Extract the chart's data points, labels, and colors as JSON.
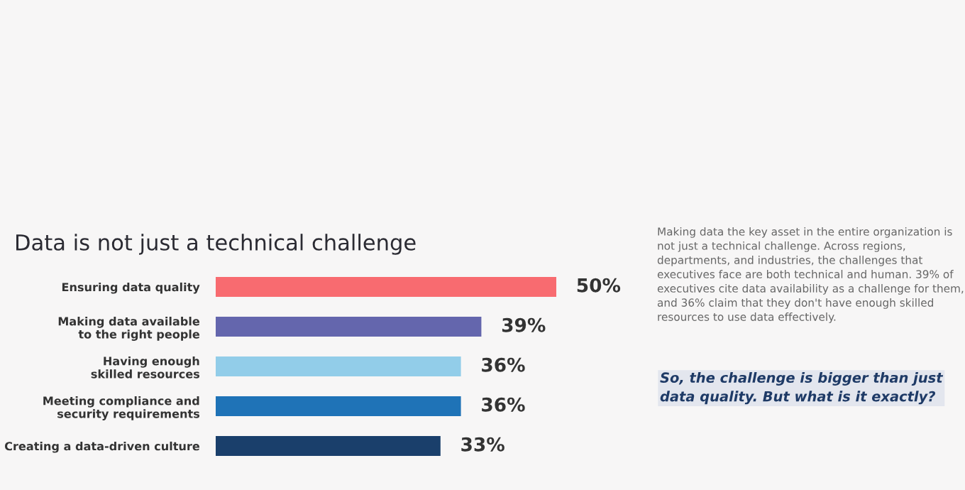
{
  "chart_data": {
    "type": "bar",
    "orientation": "horizontal",
    "title": "Data is not just a technical challenge",
    "categories": [
      "Ensuring data quality",
      "Making data available\nto the right people",
      "Having enough\nskilled resources",
      "Meeting compliance and\nsecurity requirements",
      "Creating a data-driven culture"
    ],
    "values": [
      50,
      39,
      36,
      36,
      33
    ],
    "colors": [
      "#f86b70",
      "#6466ad",
      "#92cde9",
      "#1f73b7",
      "#1a3f6b"
    ],
    "value_labels": [
      "50%",
      "39%",
      "36%",
      "36%",
      "33%"
    ],
    "annotations": [
      "Making data the key asset in the entire organization is not just a technical challenge. Across regions, departments, and industries, the challenges that executives face are both technical and human. 39% of executives cite data availability as a challenge for them, and 36% claim that they don't have enough skilled resources to use data effectively.",
      "So, the challenge is bigger than just data quality. But what is it exactly?"
    ],
    "grid": false,
    "legend": false
  }
}
